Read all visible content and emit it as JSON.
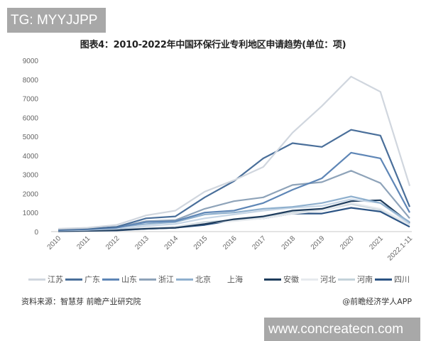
{
  "overlay_top": "TG: MYYJJPP",
  "overlay_bottom": "www.concreatecn.com",
  "source": "资料来源：智慧芽 前瞻产业研究院",
  "credit": "@前瞻经济学人APP",
  "chart_data": {
    "type": "line",
    "title": "图表4：2010-2022年中国环保行业专利地区申请趋势(单位：项)",
    "xlabel": "",
    "ylabel": "",
    "ylim": [
      0,
      9000
    ],
    "yticks": [
      0,
      1000,
      2000,
      3000,
      4000,
      5000,
      6000,
      7000,
      8000,
      9000
    ],
    "grid": false,
    "legend_position": "bottom",
    "x": [
      "2010",
      "2011",
      "2012",
      "2013",
      "2014",
      "2015",
      "2016",
      "2017",
      "2018",
      "2019",
      "2020",
      "2021",
      "2022.1-11"
    ],
    "series": [
      {
        "name": "江苏",
        "color": "#d0d6de",
        "values": [
          150,
          200,
          350,
          850,
          1100,
          2100,
          2700,
          3400,
          5200,
          6600,
          8150,
          7350,
          2400
        ]
      },
      {
        "name": "广东",
        "color": "#4a6f9a",
        "values": [
          100,
          150,
          250,
          700,
          800,
          1800,
          2650,
          3850,
          4650,
          4450,
          5350,
          5050,
          1300
        ]
      },
      {
        "name": "山东",
        "color": "#5e86b6",
        "values": [
          80,
          120,
          200,
          500,
          550,
          1000,
          1100,
          1500,
          2200,
          2800,
          4150,
          3850,
          1000
        ]
      },
      {
        "name": "浙江",
        "color": "#8ea3b9",
        "values": [
          90,
          130,
          220,
          550,
          600,
          1200,
          1600,
          1800,
          2450,
          2600,
          3200,
          2550,
          700
        ]
      },
      {
        "name": "北京",
        "color": "#8fb0ce",
        "values": [
          110,
          150,
          230,
          400,
          500,
          900,
          1000,
          1200,
          1300,
          1500,
          1850,
          1500,
          500
        ]
      },
      {
        "name": "上海",
        "color": "#c6d6e6",
        "values": [
          60,
          90,
          150,
          300,
          400,
          700,
          900,
          1100,
          1250,
          1350,
          1700,
          1500,
          400
        ]
      },
      {
        "name": "安徽",
        "color": "#1e3c5c",
        "values": [
          30,
          50,
          80,
          150,
          200,
          400,
          650,
          800,
          1100,
          1200,
          1600,
          1650,
          450
        ]
      },
      {
        "name": "河北",
        "color": "#e6eaee",
        "values": [
          40,
          60,
          100,
          200,
          250,
          450,
          550,
          700,
          950,
          1100,
          1500,
          1200,
          350
        ]
      },
      {
        "name": "河南",
        "color": "#c4d2da",
        "values": [
          40,
          60,
          100,
          200,
          250,
          500,
          600,
          750,
          1000,
          1100,
          1450,
          1150,
          350
        ]
      },
      {
        "name": "四川",
        "color": "#2c5484",
        "values": [
          20,
          40,
          60,
          150,
          200,
          350,
          600,
          700,
          950,
          950,
          1250,
          1050,
          250
        ]
      }
    ]
  }
}
